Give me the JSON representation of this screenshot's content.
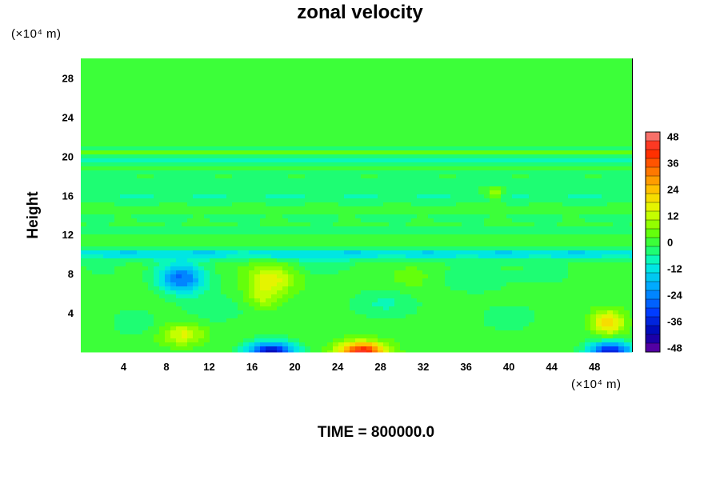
{
  "chart_data": {
    "type": "heatmap",
    "title": "zonal velocity",
    "ylabel": "Height",
    "xlabel": "",
    "x_unit": "(×10⁴ m)",
    "y_unit": "(×10⁴ m)",
    "footer": "TIME = 800000.0",
    "xlim": [
      0,
      51.5
    ],
    "ylim": [
      0,
      30
    ],
    "x_ticks": [
      "4",
      "8",
      "12",
      "16",
      "20",
      "24",
      "28",
      "32",
      "36",
      "40",
      "44",
      "48"
    ],
    "y_ticks": [
      "4",
      "8",
      "12",
      "16",
      "20",
      "24",
      "28"
    ],
    "colorbar": {
      "min": -50,
      "max": 50,
      "step": 4,
      "tick_labels": [
        "48",
        "36",
        "24",
        "12",
        "0",
        "-12",
        "-24",
        "-36",
        "-48"
      ]
    },
    "background_value": 0,
    "bands": [
      {
        "y": 10.1,
        "amp": -12,
        "width": 0.5
      },
      {
        "y": 9.7,
        "amp": -5,
        "width": 0.6
      },
      {
        "y": 12.4,
        "amp": -5,
        "width": 0.6
      },
      {
        "y": 13.7,
        "amp": -3,
        "width": 0.5
      },
      {
        "y": 15.8,
        "amp": -7,
        "width": 0.7
      },
      {
        "y": 17.2,
        "amp": -4,
        "width": 0.6
      },
      {
        "y": 18.3,
        "amp": -3,
        "width": 0.5
      },
      {
        "y": 19.6,
        "amp": -10,
        "width": 0.4
      },
      {
        "y": 20.4,
        "amp": 4,
        "width": 0.3
      },
      {
        "y": 20.9,
        "amp": -4,
        "width": 0.3
      },
      {
        "y": 21.7,
        "amp": -2,
        "width": 0.4
      },
      {
        "y": 23.5,
        "amp": -1.5,
        "width": 1.0
      }
    ],
    "features": [
      {
        "x": 9.5,
        "y": 7.3,
        "amp": -22,
        "rx": 2.2,
        "ry": 1.4
      },
      {
        "x": 9.0,
        "y": 8.3,
        "amp": -8,
        "rx": 2.0,
        "ry": 1.3
      },
      {
        "x": 17.8,
        "y": 7.5,
        "amp": 16,
        "rx": 2.3,
        "ry": 1.6
      },
      {
        "x": 17.0,
        "y": 5.5,
        "amp": 9,
        "rx": 1.5,
        "ry": 1.2
      },
      {
        "x": 9.5,
        "y": 1.8,
        "amp": 15,
        "rx": 2.0,
        "ry": 1.1
      },
      {
        "x": 17.8,
        "y": 0.0,
        "amp": -40,
        "rx": 2.2,
        "ry": 1.0
      },
      {
        "x": 26.3,
        "y": 0.0,
        "amp": 44,
        "rx": 2.2,
        "ry": 1.0
      },
      {
        "x": 49.5,
        "y": 0.0,
        "amp": -38,
        "rx": 2.0,
        "ry": 1.0
      },
      {
        "x": 49.3,
        "y": 3.0,
        "amp": 22,
        "rx": 1.5,
        "ry": 1.2
      },
      {
        "x": 12.5,
        "y": 4.5,
        "amp": -5,
        "rx": 3.0,
        "ry": 1.5
      },
      {
        "x": 5.0,
        "y": 3.0,
        "amp": -4,
        "rx": 2.5,
        "ry": 1.5
      },
      {
        "x": 28.5,
        "y": 5.0,
        "amp": -7,
        "rx": 3.0,
        "ry": 1.5
      },
      {
        "x": 36.5,
        "y": 7.5,
        "amp": -5,
        "rx": 3.5,
        "ry": 1.5
      },
      {
        "x": 22.0,
        "y": 8.8,
        "amp": -5,
        "rx": 3.0,
        "ry": 1.0
      },
      {
        "x": 31.0,
        "y": 7.5,
        "amp": 4,
        "rx": 2.5,
        "ry": 1.5
      },
      {
        "x": 40.0,
        "y": 3.5,
        "amp": -4,
        "rx": 3.0,
        "ry": 1.5
      },
      {
        "x": 43.5,
        "y": 8.0,
        "amp": -4,
        "rx": 2.5,
        "ry": 1.2
      },
      {
        "x": 38.7,
        "y": 16.2,
        "amp": 12,
        "rx": 0.9,
        "ry": 0.7
      },
      {
        "x": 2.0,
        "y": 8.5,
        "amp": -3,
        "rx": 2.0,
        "ry": 1.0
      }
    ]
  }
}
